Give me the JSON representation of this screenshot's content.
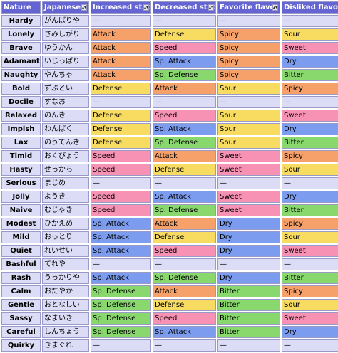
{
  "headers": [
    {
      "key": "nature",
      "label": "Nature"
    },
    {
      "key": "japanese",
      "label": "Japanese"
    },
    {
      "key": "increased",
      "label": "Increased stat"
    },
    {
      "key": "decreased",
      "label": "Decreased stat"
    },
    {
      "key": "favorite",
      "label": "Favorite flavor"
    },
    {
      "key": "disliked",
      "label": "Disliked flavor"
    }
  ],
  "sort_icon": "sort-arrows-icon",
  "colors": {
    "header": "#6464d2",
    "neutral": "#dcdcf6",
    "Attack": "#f6a06a",
    "Defense": "#f8dc62",
    "Speed": "#f892b4",
    "Sp. Attack": "#7c9cf0",
    "Sp. Defense": "#88d86e",
    "Spicy": "#f6a06a",
    "Sour": "#f8dc62",
    "Sweet": "#f892b4",
    "Dry": "#7c9cf0",
    "Bitter": "#88d86e"
  },
  "rows": [
    {
      "nature": "Hardy",
      "japanese": "がんばりや",
      "increased": "—",
      "decreased": "—",
      "favorite": "—",
      "disliked": "—"
    },
    {
      "nature": "Lonely",
      "japanese": "さみしがり",
      "increased": "Attack",
      "decreased": "Defense",
      "favorite": "Spicy",
      "disliked": "Sour"
    },
    {
      "nature": "Brave",
      "japanese": "ゆうかん",
      "increased": "Attack",
      "decreased": "Speed",
      "favorite": "Spicy",
      "disliked": "Sweet"
    },
    {
      "nature": "Adamant",
      "japanese": "いじっぱり",
      "increased": "Attack",
      "decreased": "Sp. Attack",
      "favorite": "Spicy",
      "disliked": "Dry"
    },
    {
      "nature": "Naughty",
      "japanese": "やんちゃ",
      "increased": "Attack",
      "decreased": "Sp. Defense",
      "favorite": "Spicy",
      "disliked": "Bitter"
    },
    {
      "nature": "Bold",
      "japanese": "ずぶとい",
      "increased": "Defense",
      "decreased": "Attack",
      "favorite": "Sour",
      "disliked": "Spicy"
    },
    {
      "nature": "Docile",
      "japanese": "すなお",
      "increased": "—",
      "decreased": "—",
      "favorite": "—",
      "disliked": "—"
    },
    {
      "nature": "Relaxed",
      "japanese": "のんき",
      "increased": "Defense",
      "decreased": "Speed",
      "favorite": "Sour",
      "disliked": "Sweet"
    },
    {
      "nature": "Impish",
      "japanese": "わんぱく",
      "increased": "Defense",
      "decreased": "Sp. Attack",
      "favorite": "Sour",
      "disliked": "Dry"
    },
    {
      "nature": "Lax",
      "japanese": "のうてんき",
      "increased": "Defense",
      "decreased": "Sp. Defense",
      "favorite": "Sour",
      "disliked": "Bitter"
    },
    {
      "nature": "Timid",
      "japanese": "おくびょう",
      "increased": "Speed",
      "decreased": "Attack",
      "favorite": "Sweet",
      "disliked": "Spicy"
    },
    {
      "nature": "Hasty",
      "japanese": "せっかち",
      "increased": "Speed",
      "decreased": "Defense",
      "favorite": "Sweet",
      "disliked": "Sour"
    },
    {
      "nature": "Serious",
      "japanese": "まじめ",
      "increased": "—",
      "decreased": "—",
      "favorite": "—",
      "disliked": "—"
    },
    {
      "nature": "Jolly",
      "japanese": "ようき",
      "increased": "Speed",
      "decreased": "Sp. Attack",
      "favorite": "Sweet",
      "disliked": "Dry"
    },
    {
      "nature": "Naive",
      "japanese": "むじゃき",
      "increased": "Speed",
      "decreased": "Sp. Defense",
      "favorite": "Sweet",
      "disliked": "Bitter"
    },
    {
      "nature": "Modest",
      "japanese": "ひかえめ",
      "increased": "Sp. Attack",
      "decreased": "Attack",
      "favorite": "Dry",
      "disliked": "Spicy"
    },
    {
      "nature": "Mild",
      "japanese": "おっとり",
      "increased": "Sp. Attack",
      "decreased": "Defense",
      "favorite": "Dry",
      "disliked": "Sour"
    },
    {
      "nature": "Quiet",
      "japanese": "れいせい",
      "increased": "Sp. Attack",
      "decreased": "Speed",
      "favorite": "Dry",
      "disliked": "Sweet"
    },
    {
      "nature": "Bashful",
      "japanese": "てれや",
      "increased": "—",
      "decreased": "—",
      "favorite": "—",
      "disliked": "—"
    },
    {
      "nature": "Rash",
      "japanese": "うっかりや",
      "increased": "Sp. Attack",
      "decreased": "Sp. Defense",
      "favorite": "Dry",
      "disliked": "Bitter"
    },
    {
      "nature": "Calm",
      "japanese": "おだやか",
      "increased": "Sp. Defense",
      "decreased": "Attack",
      "favorite": "Bitter",
      "disliked": "Spicy"
    },
    {
      "nature": "Gentle",
      "japanese": "おとなしい",
      "increased": "Sp. Defense",
      "decreased": "Defense",
      "favorite": "Bitter",
      "disliked": "Sour"
    },
    {
      "nature": "Sassy",
      "japanese": "なまいき",
      "increased": "Sp. Defense",
      "decreased": "Speed",
      "favorite": "Bitter",
      "disliked": "Sweet"
    },
    {
      "nature": "Careful",
      "japanese": "しんちょう",
      "increased": "Sp. Defense",
      "decreased": "Sp. Attack",
      "favorite": "Bitter",
      "disliked": "Dry"
    },
    {
      "nature": "Quirky",
      "japanese": "きまぐれ",
      "increased": "—",
      "decreased": "—",
      "favorite": "—",
      "disliked": "—"
    }
  ]
}
